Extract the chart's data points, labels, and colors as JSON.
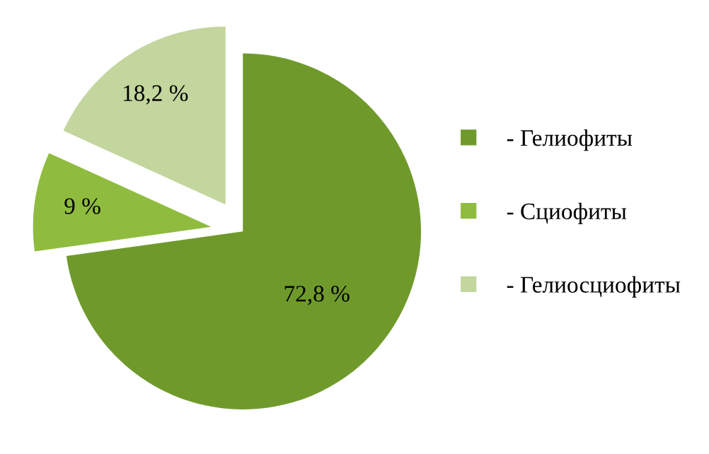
{
  "chart_data": {
    "type": "pie",
    "categories": [
      "- Гелиофиты",
      "- Сциофиты",
      "- Гелиосциофиты"
    ],
    "values": [
      72.8,
      9,
      18.2
    ],
    "value_labels": [
      "72,8 %",
      "9 %",
      "18,2 %"
    ],
    "colors": [
      "#6f9a2b",
      "#8fbc3f",
      "#c3d69e"
    ],
    "legend": "right"
  }
}
